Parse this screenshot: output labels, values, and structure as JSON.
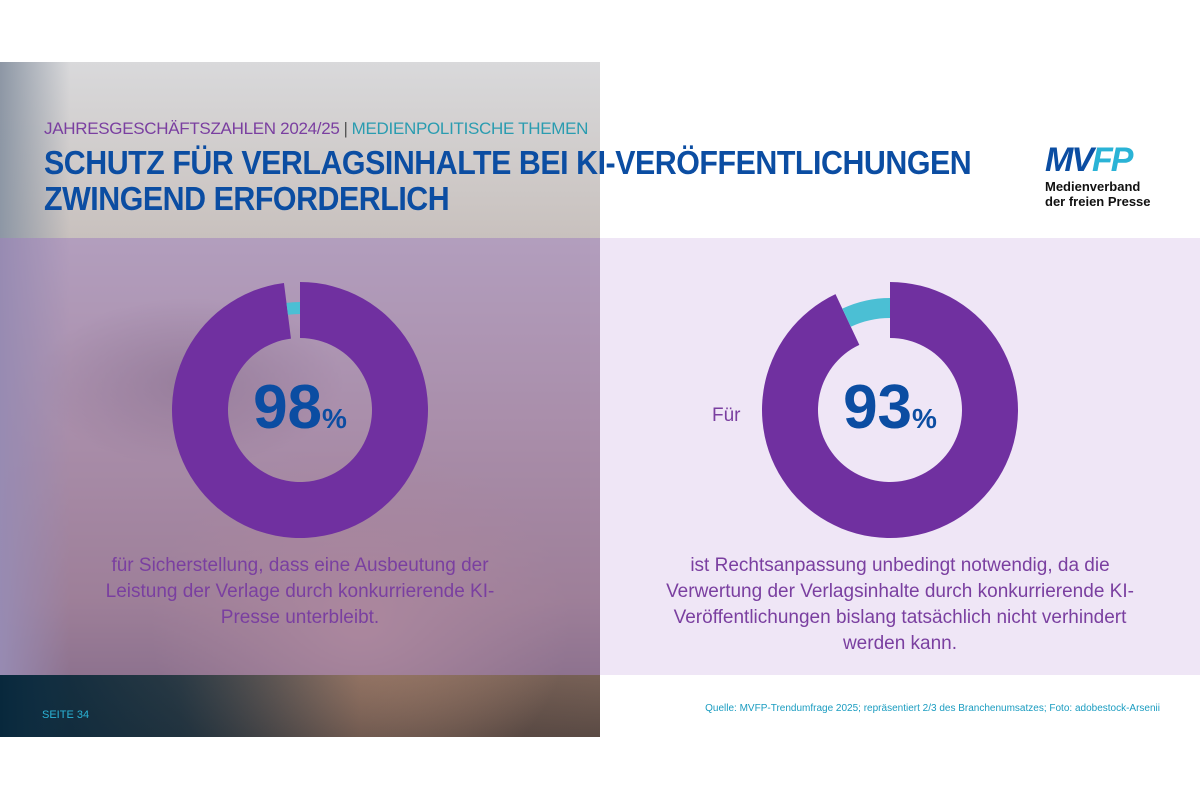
{
  "header": {
    "kicker_left": "JAHRESGESCHÄFTSZAHLEN 2024/25",
    "kicker_sep": "|",
    "kicker_right": "MEDIENPOLITISCHE THEMEN",
    "title_line1": "SCHUTZ FÜR VERLAGSINHALTE BEI KI-VERÖFFENTLICHUNGEN",
    "title_line2": "ZWINGEND ERFORDERLICH"
  },
  "logo": {
    "mark_a": "MV",
    "mark_b": "FP",
    "line1": "Medienverband",
    "line2": "der freien Presse"
  },
  "colors": {
    "purple": "#7030a0",
    "cyan": "#4bbfd4",
    "blue": "#0b4da2"
  },
  "chart_data": [
    {
      "type": "pie",
      "values": [
        98,
        2
      ],
      "value_label": "98",
      "unit": "%",
      "lead": "",
      "caption": "für Sicherstellung, dass eine Ausbeutung der Leistung der Verlage durch konkurrierende KI-Presse unterbleibt."
    },
    {
      "type": "pie",
      "values": [
        93,
        7
      ],
      "value_label": "93",
      "unit": "%",
      "lead": "Für",
      "caption": "ist Rechtsanpassung unbedingt notwendig, da die Verwertung der Verlagsinhalte durch konkurrierende KI-Veröffentlichungen bislang tatsächlich nicht verhindert werden kann."
    }
  ],
  "footer": {
    "page": "SEITE 34",
    "source": "Quelle: MVFP-Trendumfrage 2025; repräsentiert 2/3 des Branchenumsatzes; Foto: adobestock-Arsenii"
  }
}
